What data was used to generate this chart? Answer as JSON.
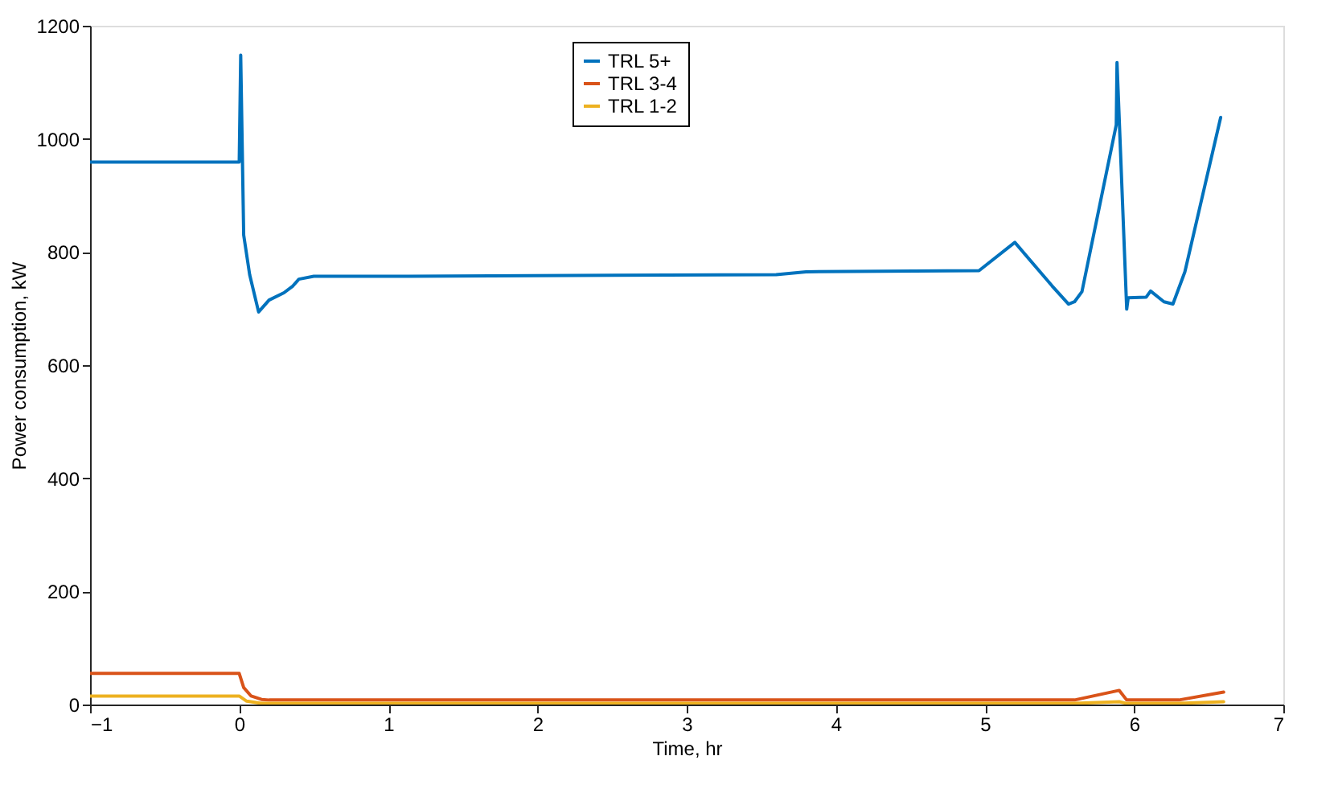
{
  "chart_data": {
    "type": "line",
    "xlabel": "Time, hr",
    "ylabel": "Power consumption, kW",
    "xlim": [
      -1,
      7
    ],
    "xticks": [
      -1,
      0,
      1,
      2,
      3,
      4,
      5,
      6,
      7
    ],
    "ylim": [
      0,
      1200
    ],
    "yticks": [
      0,
      200,
      400,
      600,
      800,
      1000,
      1200
    ],
    "grid": false,
    "legend": "top",
    "marker": "none",
    "line_style": "solid",
    "series": [
      {
        "name": "TRL 5+",
        "color": "#0072bd",
        "x": [
          -1,
          0,
          0.01,
          0.03,
          0.07,
          0.13,
          0.2,
          0.3,
          0.36,
          0.4,
          0.5,
          1,
          3.6,
          3.8,
          4.96,
          5.2,
          5.45,
          5.56,
          5.6,
          5.65,
          5.88,
          5.885,
          5.95,
          5.96,
          6.08,
          6.11,
          6.2,
          6.26,
          6.34,
          6.58
        ],
        "values": [
          959,
          959,
          1148,
          830,
          760,
          694,
          715,
          728,
          740,
          752,
          757,
          757,
          760,
          765,
          767,
          817,
          740,
          708,
          712,
          730,
          1025,
          1135,
          699,
          719,
          720,
          731,
          712,
          708,
          765,
          1038
        ]
      },
      {
        "name": "TRL 3-4",
        "color": "#d95319",
        "x": [
          -1,
          0,
          0.03,
          0.08,
          0.15,
          0.2,
          5.6,
          5.9,
          5.95,
          6.3,
          6.6
        ],
        "values": [
          55,
          55,
          30,
          15,
          9,
          8,
          8,
          25,
          8,
          8,
          22
        ]
      },
      {
        "name": "TRL 1-2",
        "color": "#edb120",
        "x": [
          -1,
          0,
          0.05,
          0.15,
          5.6,
          5.9,
          5.95,
          6.3,
          6.6
        ],
        "values": [
          15,
          15,
          6,
          2,
          2,
          5,
          2,
          2,
          5
        ]
      }
    ]
  }
}
